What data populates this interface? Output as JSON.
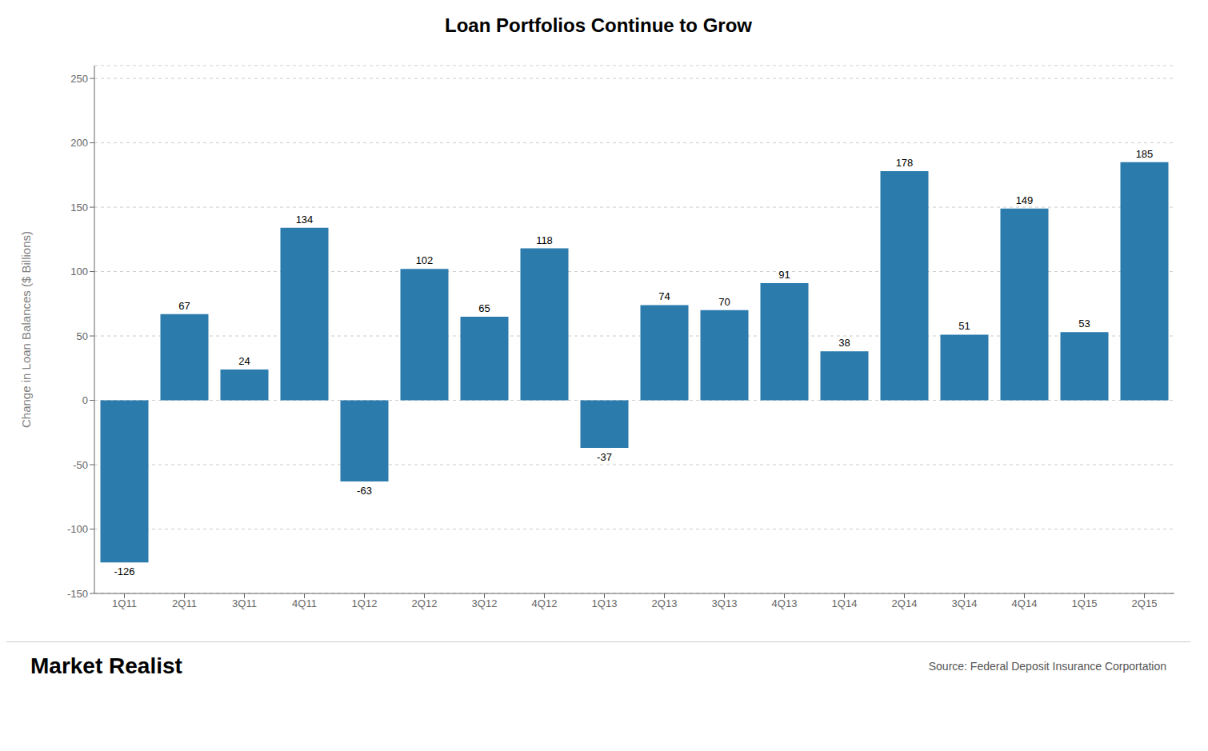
{
  "chart_data": {
    "type": "bar",
    "title": "Loan Portfolios Continue to Grow",
    "ylabel": "Change in Loan Balances ($ Billions)",
    "categories": [
      "1Q11",
      "2Q11",
      "3Q11",
      "4Q11",
      "1Q12",
      "2Q12",
      "3Q12",
      "4Q12",
      "1Q13",
      "2Q13",
      "3Q13",
      "4Q13",
      "1Q14",
      "2Q14",
      "3Q14",
      "4Q14",
      "1Q15",
      "2Q15"
    ],
    "values": [
      -126,
      67,
      24,
      134,
      -63,
      102,
      65,
      118,
      -37,
      74,
      70,
      91,
      38,
      178,
      51,
      149,
      53,
      185
    ],
    "color": "#2B7BAD",
    "ylim": [
      -150,
      260
    ],
    "yticks": [
      -150,
      -100,
      -50,
      0,
      50,
      100,
      150,
      200,
      250
    ],
    "grid": true,
    "data_labels": true,
    "annotations": [
      "Market Realist",
      "Source: Federal Deposit Insurance Corportation"
    ]
  }
}
